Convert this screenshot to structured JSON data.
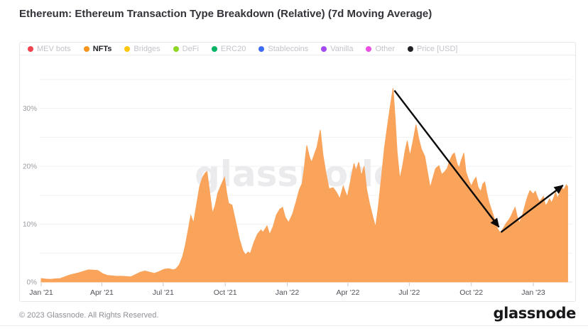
{
  "title": "Ethereum: Ethereum Transaction Type Breakdown (Relative) (7d Moving Average)",
  "watermark": {
    "text": "glassnode"
  },
  "footer": {
    "copyright": "© 2023 Glassnode. All Rights Reserved.",
    "logo_text": "glassnode"
  },
  "legend": {
    "items": [
      {
        "key": "mev-bots",
        "label": "MEV bots",
        "color": "#f0424f",
        "active": false
      },
      {
        "key": "nfts",
        "label": "NFTs",
        "color": "#f7941e",
        "active": true
      },
      {
        "key": "bridges",
        "label": "Bridges",
        "color": "#fec60a",
        "active": false
      },
      {
        "key": "defi",
        "label": "DeFi",
        "color": "#8ed525",
        "active": false
      },
      {
        "key": "erc20",
        "label": "ERC20",
        "color": "#00b365",
        "active": false
      },
      {
        "key": "stablecoins",
        "label": "Stablecoins",
        "color": "#3d6df6",
        "active": false
      },
      {
        "key": "vanilla",
        "label": "Vanilla",
        "color": "#a44bf0",
        "active": false
      },
      {
        "key": "other",
        "label": "Other",
        "color": "#ee4fe3",
        "active": false
      },
      {
        "key": "price-usd",
        "label": "Price [USD]",
        "color": "#222226",
        "active": false
      }
    ]
  },
  "chart_data": {
    "type": "area",
    "series_name": "NFTs",
    "unit": "%",
    "color": "#f9a35b",
    "title": "Ethereum: Ethereum Transaction Type Breakdown (Relative) (7d Moving Average)",
    "xlabel": "",
    "ylabel": "",
    "ylim": [
      0,
      35
    ],
    "grid_step": 5,
    "grid_on": true,
    "legend_position": "top",
    "x_axis": {
      "origin_date": "2021-01-01"
    },
    "y_ticks": [
      {
        "value": 0,
        "label": "0%"
      },
      {
        "value": 10,
        "label": "10%"
      },
      {
        "value": 20,
        "label": "20%"
      },
      {
        "value": 30,
        "label": "30%"
      }
    ],
    "x_ticks": [
      {
        "date": "2021-01-01",
        "label": "Jan '21"
      },
      {
        "date": "2021-04-01",
        "label": "Apr '21"
      },
      {
        "date": "2021-07-01",
        "label": "Jul '21"
      },
      {
        "date": "2021-10-01",
        "label": "Oct '21"
      },
      {
        "date": "2022-01-01",
        "label": "Jan '22"
      },
      {
        "date": "2022-04-01",
        "label": "Apr '22"
      },
      {
        "date": "2022-07-01",
        "label": "Jul '22"
      },
      {
        "date": "2022-10-01",
        "label": "Oct '22"
      },
      {
        "date": "2023-01-01",
        "label": "Jan '23"
      }
    ],
    "points": [
      [
        "2021-01-01",
        0.6
      ],
      [
        "2021-01-08",
        0.5
      ],
      [
        "2021-01-15",
        0.45
      ],
      [
        "2021-01-22",
        0.55
      ],
      [
        "2021-01-29",
        0.6
      ],
      [
        "2021-02-05",
        0.9
      ],
      [
        "2021-02-12",
        1.2
      ],
      [
        "2021-02-19",
        1.4
      ],
      [
        "2021-02-26",
        1.6
      ],
      [
        "2021-03-05",
        1.85
      ],
      [
        "2021-03-12",
        2.1
      ],
      [
        "2021-03-19",
        2.05
      ],
      [
        "2021-03-26",
        2.0
      ],
      [
        "2021-04-02",
        1.45
      ],
      [
        "2021-04-09",
        1.15
      ],
      [
        "2021-04-16",
        1.05
      ],
      [
        "2021-04-23",
        1.0
      ],
      [
        "2021-04-30",
        1.0
      ],
      [
        "2021-05-07",
        0.95
      ],
      [
        "2021-05-14",
        0.9
      ],
      [
        "2021-05-21",
        1.3
      ],
      [
        "2021-05-28",
        1.7
      ],
      [
        "2021-06-04",
        1.9
      ],
      [
        "2021-06-11",
        1.7
      ],
      [
        "2021-06-18",
        1.5
      ],
      [
        "2021-06-25",
        1.8
      ],
      [
        "2021-07-02",
        2.2
      ],
      [
        "2021-07-09",
        2.3
      ],
      [
        "2021-07-16",
        2.1
      ],
      [
        "2021-07-20",
        2.3
      ],
      [
        "2021-07-25",
        3.0
      ],
      [
        "2021-07-30",
        4.5
      ],
      [
        "2021-08-03",
        6.5
      ],
      [
        "2021-08-07",
        9.0
      ],
      [
        "2021-08-11",
        11.5
      ],
      [
        "2021-08-15",
        10.2
      ],
      [
        "2021-08-19",
        13.0
      ],
      [
        "2021-08-24",
        16.5
      ],
      [
        "2021-08-28",
        18.0
      ],
      [
        "2021-09-01",
        18.8
      ],
      [
        "2021-09-04",
        19.1
      ],
      [
        "2021-09-08",
        15.5
      ],
      [
        "2021-09-12",
        11.9
      ],
      [
        "2021-09-16",
        13.2
      ],
      [
        "2021-09-20",
        15.4
      ],
      [
        "2021-09-25",
        16.8
      ],
      [
        "2021-09-30",
        18.1
      ],
      [
        "2021-10-03",
        15.5
      ],
      [
        "2021-10-06",
        13.6
      ],
      [
        "2021-10-11",
        13.3
      ],
      [
        "2021-10-16",
        10.7
      ],
      [
        "2021-10-22",
        7.4
      ],
      [
        "2021-10-27",
        5.5
      ],
      [
        "2021-10-31",
        4.7
      ],
      [
        "2021-11-04",
        5.2
      ],
      [
        "2021-11-07",
        4.9
      ],
      [
        "2021-11-13",
        7.0
      ],
      [
        "2021-11-18",
        8.3
      ],
      [
        "2021-11-23",
        9.0
      ],
      [
        "2021-11-26",
        8.6
      ],
      [
        "2021-12-02",
        9.7
      ],
      [
        "2021-12-06",
        8.2
      ],
      [
        "2021-12-11",
        9.6
      ],
      [
        "2021-12-16",
        11.6
      ],
      [
        "2021-12-21",
        12.6
      ],
      [
        "2021-12-25",
        12.9
      ],
      [
        "2021-12-29",
        11.2
      ],
      [
        "2022-01-03",
        10.3
      ],
      [
        "2022-01-09",
        11.8
      ],
      [
        "2022-01-14",
        13.8
      ],
      [
        "2022-01-19",
        16.0
      ],
      [
        "2022-01-23",
        17.0
      ],
      [
        "2022-01-26",
        19.5
      ],
      [
        "2022-01-30",
        23.6
      ],
      [
        "2022-02-03",
        21.6
      ],
      [
        "2022-02-06",
        20.7
      ],
      [
        "2022-02-10",
        22.0
      ],
      [
        "2022-02-14",
        23.3
      ],
      [
        "2022-02-19",
        26.3
      ],
      [
        "2022-02-23",
        22.0
      ],
      [
        "2022-02-27",
        19.1
      ],
      [
        "2022-03-04",
        16.1
      ],
      [
        "2022-03-10",
        16.3
      ],
      [
        "2022-03-15",
        15.5
      ],
      [
        "2022-03-20",
        14.4
      ],
      [
        "2022-03-25",
        16.6
      ],
      [
        "2022-03-31",
        14.7
      ],
      [
        "2022-04-05",
        17.5
      ],
      [
        "2022-04-10",
        20.5
      ],
      [
        "2022-04-13",
        19.2
      ],
      [
        "2022-04-17",
        20.7
      ],
      [
        "2022-04-21",
        18.4
      ],
      [
        "2022-04-25",
        20.0
      ],
      [
        "2022-04-29",
        15.9
      ],
      [
        "2022-05-03",
        13.6
      ],
      [
        "2022-05-08",
        11.2
      ],
      [
        "2022-05-12",
        9.5
      ],
      [
        "2022-05-16",
        13.0
      ],
      [
        "2022-05-21",
        18.5
      ],
      [
        "2022-05-25",
        23.0
      ],
      [
        "2022-05-29",
        26.5
      ],
      [
        "2022-06-03",
        30.5
      ],
      [
        "2022-06-07",
        33.5
      ],
      [
        "2022-06-10",
        28.5
      ],
      [
        "2022-06-13",
        22.5
      ],
      [
        "2022-06-17",
        17.8
      ],
      [
        "2022-06-21",
        20.0
      ],
      [
        "2022-06-25",
        22.8
      ],
      [
        "2022-06-28",
        24.4
      ],
      [
        "2022-07-02",
        21.8
      ],
      [
        "2022-07-07",
        24.6
      ],
      [
        "2022-07-11",
        27.2
      ],
      [
        "2022-07-15",
        24.8
      ],
      [
        "2022-07-19",
        23.0
      ],
      [
        "2022-07-24",
        21.7
      ],
      [
        "2022-07-28",
        19.0
      ],
      [
        "2022-08-01",
        16.3
      ],
      [
        "2022-08-05",
        18.0
      ],
      [
        "2022-08-09",
        19.6
      ],
      [
        "2022-08-14",
        20.1
      ],
      [
        "2022-08-18",
        18.6
      ],
      [
        "2022-08-22",
        19.0
      ],
      [
        "2022-08-26",
        19.6
      ],
      [
        "2022-08-30",
        21.0
      ],
      [
        "2022-09-03",
        22.0
      ],
      [
        "2022-09-06",
        22.3
      ],
      [
        "2022-09-10",
        20.4
      ],
      [
        "2022-09-13",
        19.7
      ],
      [
        "2022-09-16",
        21.0
      ],
      [
        "2022-09-20",
        22.3
      ],
      [
        "2022-09-23",
        19.0
      ],
      [
        "2022-09-28",
        17.4
      ],
      [
        "2022-10-01",
        16.6
      ],
      [
        "2022-10-05",
        17.6
      ],
      [
        "2022-10-08",
        18.1
      ],
      [
        "2022-10-11",
        16.4
      ],
      [
        "2022-10-15",
        15.6
      ],
      [
        "2022-10-18",
        16.9
      ],
      [
        "2022-10-21",
        17.3
      ],
      [
        "2022-10-24",
        15.4
      ],
      [
        "2022-10-27",
        13.9
      ],
      [
        "2022-10-30",
        12.8
      ],
      [
        "2022-11-03",
        11.4
      ],
      [
        "2022-11-06",
        10.3
      ],
      [
        "2022-11-09",
        9.2
      ],
      [
        "2022-11-13",
        8.5
      ],
      [
        "2022-11-16",
        9.0
      ],
      [
        "2022-11-19",
        9.6
      ],
      [
        "2022-11-22",
        10.2
      ],
      [
        "2022-11-26",
        10.8
      ],
      [
        "2022-11-29",
        11.4
      ],
      [
        "2022-12-02",
        12.2
      ],
      [
        "2022-12-05",
        12.9
      ],
      [
        "2022-12-08",
        11.4
      ],
      [
        "2022-12-11",
        10.2
      ],
      [
        "2022-12-15",
        11.2
      ],
      [
        "2022-12-18",
        12.5
      ],
      [
        "2022-12-21",
        13.8
      ],
      [
        "2022-12-24",
        14.9
      ],
      [
        "2022-12-27",
        15.8
      ],
      [
        "2023-01-01",
        15.2
      ],
      [
        "2023-01-04",
        15.7
      ],
      [
        "2023-01-07",
        14.7
      ],
      [
        "2023-01-10",
        13.9
      ],
      [
        "2023-01-13",
        14.3
      ],
      [
        "2023-01-16",
        14.8
      ],
      [
        "2023-01-19",
        13.2
      ],
      [
        "2023-01-22",
        13.6
      ],
      [
        "2023-01-25",
        14.4
      ],
      [
        "2023-01-28",
        13.7
      ],
      [
        "2023-01-31",
        14.5
      ],
      [
        "2023-02-03",
        15.5
      ],
      [
        "2023-02-06",
        14.5
      ],
      [
        "2023-02-09",
        15.3
      ],
      [
        "2023-02-12",
        16.4
      ],
      [
        "2023-02-15",
        15.9
      ],
      [
        "2023-02-19",
        16.8
      ],
      [
        "2023-02-21",
        16.5
      ]
    ],
    "annotations": {
      "arrows": [
        {
          "from": [
            "2022-06-09",
            33.1
          ],
          "to": [
            "2022-11-11",
            9.5
          ],
          "direction": "down"
        },
        {
          "from": [
            "2022-11-14",
            8.6
          ],
          "to": [
            "2023-02-14",
            16.7
          ],
          "direction": "up"
        }
      ]
    }
  }
}
